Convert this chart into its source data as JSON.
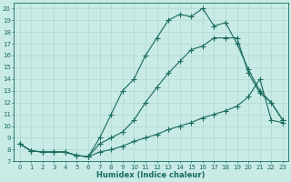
{
  "xlabel": "Humidex (Indice chaleur)",
  "bg_color": "#c8ebe5",
  "line_color": "#1a6b60",
  "grid_color": "#b0d8d2",
  "xlim": [
    -0.5,
    23.5
  ],
  "ylim": [
    7,
    20.5
  ],
  "yticks": [
    7,
    8,
    9,
    10,
    11,
    12,
    13,
    14,
    15,
    16,
    17,
    18,
    19,
    20
  ],
  "xticks": [
    0,
    1,
    2,
    3,
    4,
    5,
    6,
    7,
    8,
    9,
    10,
    11,
    12,
    13,
    14,
    15,
    16,
    17,
    18,
    19,
    20,
    21,
    22,
    23
  ],
  "line_top_x": [
    0,
    1,
    2,
    3,
    4,
    5,
    6,
    7,
    8,
    9,
    10,
    11,
    12,
    13,
    14,
    15,
    16,
    17,
    18,
    19,
    20,
    21,
    22,
    23
  ],
  "line_top_y": [
    8.5,
    7.9,
    7.8,
    7.8,
    7.8,
    7.5,
    7.4,
    9.0,
    11.0,
    13.0,
    14.0,
    16.0,
    17.5,
    19.0,
    19.5,
    19.3,
    20.0,
    18.5,
    18.8,
    17.0,
    14.8,
    13.0,
    12.0,
    10.5
  ],
  "line_mid_x": [
    0,
    1,
    2,
    3,
    4,
    5,
    6,
    7,
    8,
    9,
    10,
    11,
    12,
    13,
    14,
    15,
    16,
    17,
    18,
    19,
    20,
    21,
    22,
    23
  ],
  "line_mid_y": [
    8.5,
    7.9,
    7.8,
    7.8,
    7.8,
    7.5,
    7.4,
    8.5,
    9.0,
    9.5,
    10.5,
    12.0,
    13.3,
    14.5,
    15.5,
    16.5,
    16.8,
    17.5,
    17.5,
    17.5,
    14.5,
    12.8,
    12.0,
    10.5
  ],
  "line_bot_x": [
    0,
    1,
    2,
    3,
    4,
    5,
    6,
    7,
    8,
    9,
    10,
    11,
    12,
    13,
    14,
    15,
    16,
    17,
    18,
    19,
    20,
    21,
    22,
    23
  ],
  "line_bot_y": [
    8.5,
    7.9,
    7.8,
    7.8,
    7.8,
    7.5,
    7.4,
    7.8,
    8.0,
    8.3,
    8.7,
    9.0,
    9.3,
    9.7,
    10.0,
    10.3,
    10.7,
    11.0,
    11.3,
    11.7,
    12.5,
    14.0,
    10.5,
    10.3
  ]
}
